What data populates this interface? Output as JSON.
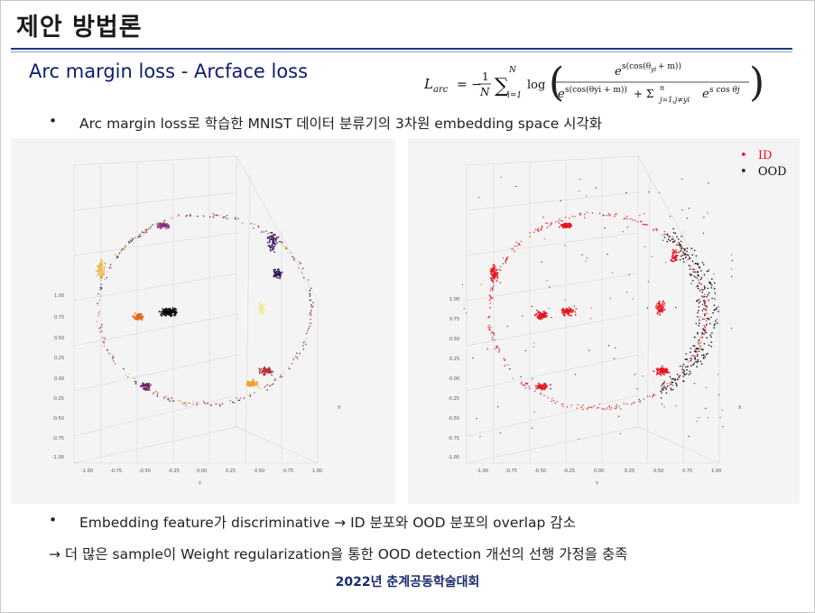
{
  "slide": {
    "title": "제안 방법론",
    "subtitle": "Arc margin loss - Arcface loss",
    "bullets": [
      "Arc margin loss로 학습한 MNIST 데이터 분류기의 3차원 embedding space 시각화",
      "Embedding feature가 discriminative  →  ID 분포와 OOD 분포의 overlap 감소"
    ],
    "bullet_marker": "•",
    "conclusion": "→  더 많은 sample이 Weight regularization을 통한 OOD detection 개선의 선행 가정을 충족",
    "footer": "2022년  춘계공동학술대회"
  },
  "formula": {
    "lhs": "L",
    "lhs_sub": "arc",
    "equals": "= −",
    "frac_num": "1",
    "frac_den": "N",
    "sum_top": "N",
    "sum_bot": "i=1",
    "log": "log",
    "numerator": "e",
    "numerator_exp_a": "s(cos(θ",
    "numerator_exp_sub": "yi",
    "numerator_exp_b": " + m))",
    "margin_symbol": "m",
    "denominator_a": "e",
    "denominator_plus": "+  Σ",
    "denominator_sum_top": "n",
    "denominator_sum_bot": "j=1,j≠yi",
    "denominator_b": "e",
    "denominator_b_exp": "s cos θj",
    "colors": {
      "margin": "#e02020",
      "text": "#111111"
    }
  },
  "legend": {
    "items": [
      {
        "label": "ID",
        "color": "#e8141e"
      },
      {
        "label": "OOD",
        "color": "#111111"
      }
    ]
  },
  "plots": {
    "tick_labels": [
      "1.00",
      "0.75",
      "0.50",
      "0.25",
      "0.00",
      "-0.25",
      "-0.50",
      "-0.75",
      "-1.00"
    ],
    "x_ticks": [
      "-1.00",
      "-0.75",
      "-0.50",
      "-0.25",
      "0.00",
      "0.25",
      "0.50",
      "0.75",
      "1.00"
    ],
    "axis_y": "Y",
    "axis_x": "X"
  }
}
